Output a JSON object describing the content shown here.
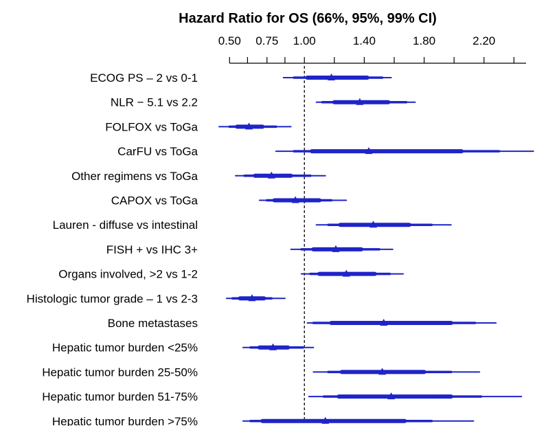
{
  "chart_data": {
    "type": "forest",
    "title": "Hazard Ratio for OS (66%, 95%, 99% CI)",
    "x_ticks": [
      {
        "value": 0.5,
        "label": "0.50"
      },
      {
        "value": 0.75,
        "label": "0.75"
      },
      {
        "value": 1.0,
        "label": "1.00"
      },
      {
        "value": 1.4,
        "label": "1.40"
      },
      {
        "value": 1.8,
        "label": "1.80"
      },
      {
        "value": 2.2,
        "label": "2.20"
      }
    ],
    "x_minor_ticks": [
      0.62,
      0.87,
      1.2,
      1.6,
      2.0,
      2.4
    ],
    "xlim": [
      0.43,
      2.55
    ],
    "reference_value": 1.0,
    "color": "#1f24c8",
    "rows": [
      {
        "label": "ECOG PS – 2 vs 0-1",
        "hr": 1.18,
        "ci66": [
          1.02,
          1.42
        ],
        "ci95": [
          0.93,
          1.52
        ],
        "ci99": [
          0.86,
          1.58
        ]
      },
      {
        "label": "NLR − 5.1 vs 2.2",
        "hr": 1.37,
        "ci66": [
          1.2,
          1.56
        ],
        "ci95": [
          1.12,
          1.68
        ],
        "ci99": [
          1.08,
          1.74
        ]
      },
      {
        "label": "FOLFOX vs ToGa",
        "hr": 0.63,
        "ci66": [
          0.55,
          0.72
        ],
        "ci95": [
          0.5,
          0.81
        ],
        "ci99": [
          0.43,
          0.91
        ]
      },
      {
        "label": "CarFU vs ToGa",
        "hr": 1.43,
        "ci66": [
          1.05,
          2.05
        ],
        "ci95": [
          0.93,
          2.3
        ],
        "ci99": [
          0.81,
          2.53
        ]
      },
      {
        "label": "Other regimens vs ToGa",
        "hr": 0.78,
        "ci66": [
          0.67,
          0.91
        ],
        "ci95": [
          0.6,
          1.04
        ],
        "ci99": [
          0.54,
          1.14
        ]
      },
      {
        "label": "CAPOX vs ToGa",
        "hr": 0.94,
        "ci66": [
          0.8,
          1.1
        ],
        "ci95": [
          0.75,
          1.18
        ],
        "ci99": [
          0.7,
          1.28
        ]
      },
      {
        "label": "Lauren - diffuse vs intestinal",
        "hr": 1.46,
        "ci66": [
          1.24,
          1.7
        ],
        "ci95": [
          1.16,
          1.85
        ],
        "ci99": [
          1.08,
          1.98
        ]
      },
      {
        "label": "FISH + vs IHC 3+",
        "hr": 1.21,
        "ci66": [
          1.06,
          1.38
        ],
        "ci95": [
          0.98,
          1.5
        ],
        "ci99": [
          0.91,
          1.59
        ]
      },
      {
        "label": "Organs involved, >2 vs 1-2",
        "hr": 1.28,
        "ci66": [
          1.1,
          1.47
        ],
        "ci95": [
          1.04,
          1.57
        ],
        "ci99": [
          0.98,
          1.66
        ]
      },
      {
        "label": "Histologic tumor grade – 1 vs 2-3",
        "hr": 0.65,
        "ci66": [
          0.57,
          0.73
        ],
        "ci95": [
          0.52,
          0.78
        ],
        "ci99": [
          0.48,
          0.87
        ]
      },
      {
        "label": "Bone metastases",
        "hr": 1.53,
        "ci66": [
          1.18,
          1.98
        ],
        "ci95": [
          1.06,
          2.14
        ],
        "ci99": [
          1.02,
          2.28
        ]
      },
      {
        "label": "Hepatic tumor burden <25%",
        "hr": 0.79,
        "ci66": [
          0.7,
          0.89
        ],
        "ci95": [
          0.64,
          0.99
        ],
        "ci99": [
          0.59,
          1.06
        ]
      },
      {
        "label": "Hepatic tumor burden 25-50%",
        "hr": 1.52,
        "ci66": [
          1.25,
          1.8
        ],
        "ci95": [
          1.16,
          1.98
        ],
        "ci99": [
          1.06,
          2.17
        ]
      },
      {
        "label": "Hepatic tumor burden 51-75%",
        "hr": 1.58,
        "ci66": [
          1.23,
          1.98
        ],
        "ci95": [
          1.13,
          2.18
        ],
        "ci99": [
          1.03,
          2.45
        ]
      },
      {
        "label": "Hepatic tumor burden >75%",
        "hr": 1.14,
        "ci66": [
          0.72,
          1.67
        ],
        "ci95": [
          0.64,
          1.85
        ],
        "ci99": [
          0.59,
          2.13
        ]
      }
    ]
  }
}
